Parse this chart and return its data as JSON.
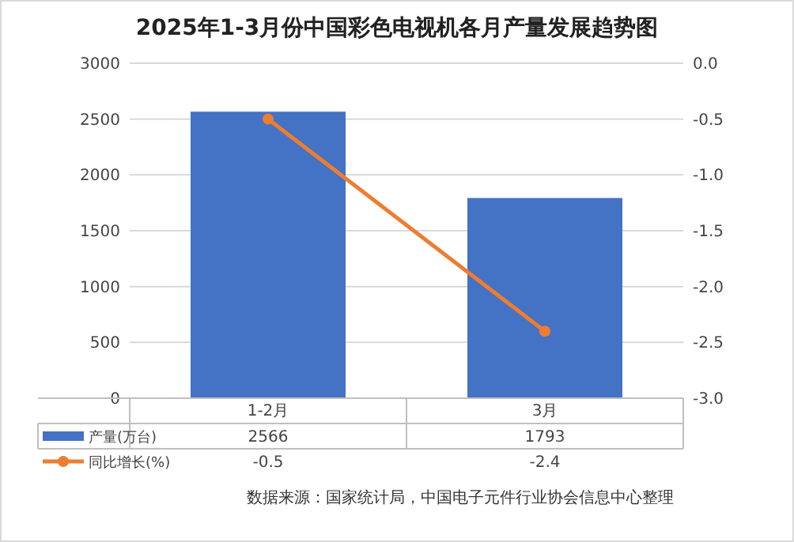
{
  "chart_data": {
    "type": "bar",
    "title": "2025年1-3月份中国彩色电视机各月产量发展趋势图",
    "categories": [
      "1-2月",
      "3月"
    ],
    "series": [
      {
        "name": "产量(万台)",
        "color": "#4472c4",
        "values": [
          2566,
          1793
        ]
      },
      {
        "name": "同比增长(%)",
        "type": "line",
        "axis": "y2",
        "color": "#ed7d31",
        "values": [
          -0.5,
          -2.4
        ],
        "marker": "circle"
      }
    ],
    "ylim": [
      0,
      3000
    ],
    "yticks": [
      0,
      500,
      1000,
      1500,
      2000,
      2500,
      3000
    ],
    "y2lim": [
      -3,
      0
    ],
    "y2ticks": [
      {
        "value": 0,
        "label": "0.0"
      },
      {
        "value": -0.5,
        "label": "-0.5"
      },
      {
        "value": -1,
        "label": "-1.0"
      },
      {
        "value": -1.5,
        "label": "-1.5"
      },
      {
        "value": -2,
        "label": "-2.0"
      },
      {
        "value": -2.5,
        "label": "-2.5"
      },
      {
        "value": -3,
        "label": "-3.0"
      }
    ],
    "grid": "y",
    "data_labels": true,
    "legend": "bottom",
    "annotations": [
      "数据来源：国家统计局，中国电子元件行业协会信息中心整理"
    ]
  }
}
